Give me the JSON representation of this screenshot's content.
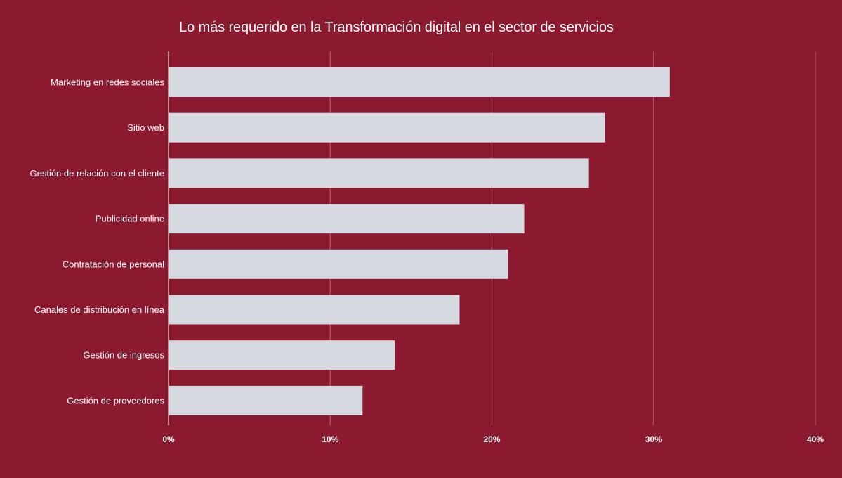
{
  "colors": {
    "background": "#8b1a31",
    "bar": "#d7d9e0",
    "grid": "#b86a7a",
    "axis": "#ffffff",
    "text": "#ffffff"
  },
  "chart_data": {
    "type": "bar",
    "orientation": "horizontal",
    "title": "Lo más requerido en la Transformación digital en el sector de servicios",
    "xlabel": "",
    "ylabel": "",
    "categories": [
      "Marketing en redes sociales",
      "Sitio web",
      "Gestión de relación con el cliente",
      "Publicidad online",
      "Contratación de personal",
      "Canales de distribución en línea",
      "Gestión de ingresos",
      "Gestión de proveedores"
    ],
    "values": [
      31,
      27,
      26,
      22,
      21,
      18,
      14,
      12
    ],
    "unit": "%",
    "xlim": [
      0,
      40
    ],
    "ticks": [
      "0%",
      "10%",
      "20%",
      "30%",
      "40%"
    ],
    "tick_values": [
      0,
      10,
      20,
      30,
      40
    ],
    "grid": true,
    "legend": "none"
  }
}
